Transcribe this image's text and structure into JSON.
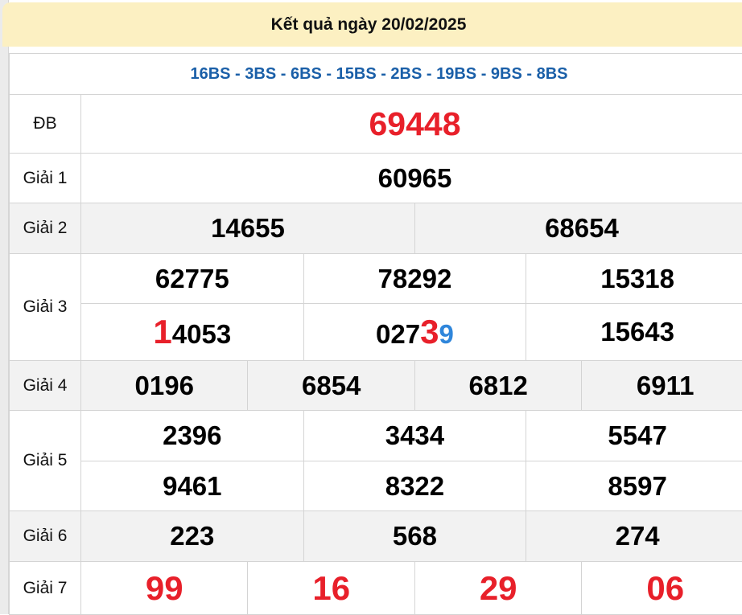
{
  "header": {
    "title": "Kết quả ngày 20/02/2025"
  },
  "codes": "16BS - 3BS - 6BS - 15BS - 2BS - 19BS - 9BS - 8BS",
  "colors": {
    "red": "#e8202a",
    "blue": "#2f86db",
    "code_blue": "#1a5fa8",
    "header_bg": "#fcf0c2"
  },
  "prizes": [
    {
      "label": "ĐB",
      "rows": [
        [
          "69448"
        ]
      ],
      "style": "db",
      "height": 73
    },
    {
      "label": "Giải 1",
      "rows": [
        [
          "60965"
        ]
      ],
      "height": 62
    },
    {
      "label": "Giải 2",
      "rows": [
        [
          "14655",
          "68654"
        ]
      ],
      "gray": true,
      "height": 63
    },
    {
      "label": "Giải 3",
      "rows": [
        [
          "62775",
          "78292",
          "15318"
        ],
        [
          [
            {
              "t": "1",
              "c": "red big"
            },
            {
              "t": "4053"
            }
          ],
          [
            {
              "t": "027"
            },
            {
              "t": "3",
              "c": "red big"
            },
            {
              "t": "9",
              "c": "blue"
            }
          ],
          "15643"
        ]
      ],
      "height": [
        62,
        71
      ]
    },
    {
      "label": "Giải 4",
      "rows": [
        [
          "0196",
          "6854",
          "6812",
          "6911"
        ]
      ],
      "gray": true,
      "height": 62
    },
    {
      "label": "Giải 5",
      "rows": [
        [
          "2396",
          "3434",
          "5547"
        ],
        [
          "9461",
          "8322",
          "8597"
        ]
      ],
      "height": [
        63,
        62
      ]
    },
    {
      "label": "Giải 6",
      "rows": [
        [
          "223",
          "568",
          "274"
        ]
      ],
      "gray": true,
      "height": 63
    },
    {
      "label": "Giải 7",
      "rows": [
        [
          "99",
          "16",
          "29",
          "06"
        ]
      ],
      "style": "g7",
      "height": 66
    }
  ]
}
